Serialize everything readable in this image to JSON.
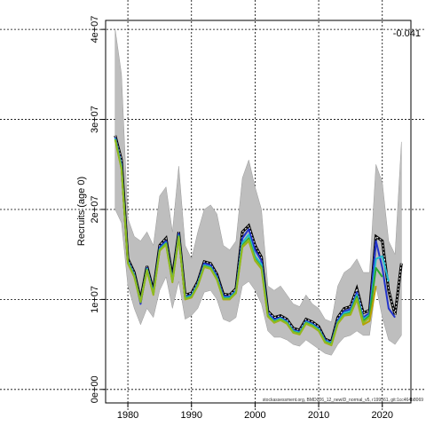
{
  "chart_data": {
    "type": "line",
    "title": "",
    "xlabel": "",
    "ylabel": "Recruits (age 0)",
    "xlim": [
      1976.5,
      2024.5
    ],
    "ylim": [
      -1500000,
      41000000
    ],
    "x_ticks": [
      1980,
      1990,
      2000,
      2010,
      2020
    ],
    "x_tick_labels": [
      "1980",
      "1990",
      "2000",
      "2010",
      "2020"
    ],
    "y_ticks": [
      0,
      10000000,
      20000000,
      30000000,
      40000000
    ],
    "y_tick_labels": [
      "0e+00",
      "1e+07",
      "2e+07",
      "3e+07",
      "4e+07"
    ],
    "grid": true,
    "corner_label": "-0.041",
    "footnote": "stockassessment.org, BMD026_12_newID_normal_v5, r199561, git:1cc464b8069",
    "band": {
      "x": [
        1978,
        1979,
        1980,
        1981,
        1982,
        1983,
        1984,
        1985,
        1986,
        1987,
        1988,
        1989,
        1990,
        1991,
        1992,
        1993,
        1994,
        1995,
        1996,
        1997,
        1998,
        1999,
        2000,
        2001,
        2002,
        2003,
        2004,
        2005,
        2006,
        2007,
        2008,
        2009,
        2010,
        2011,
        2012,
        2013,
        2014,
        2015,
        2016,
        2017,
        2018,
        2019,
        2020,
        2021,
        2022,
        2023
      ],
      "lower": [
        20000000,
        18500000,
        11500000,
        9000000,
        7200000,
        9000000,
        8000000,
        11000000,
        12500000,
        9000000,
        12000000,
        7800000,
        8200000,
        9000000,
        10800000,
        11000000,
        10000000,
        7800000,
        7500000,
        8000000,
        11500000,
        12000000,
        11000000,
        9500000,
        6500000,
        5800000,
        5800000,
        5500000,
        5000000,
        4800000,
        5500000,
        5000000,
        4500000,
        4000000,
        3800000,
        5000000,
        5800000,
        6000000,
        6500000,
        6000000,
        6000000,
        11500000,
        8000000,
        5500000,
        5000000,
        6000000
      ],
      "upper": [
        40000000,
        35000000,
        19000000,
        17000000,
        16500000,
        17500000,
        16000000,
        21500000,
        22500000,
        17500000,
        24800000,
        16000000,
        14500000,
        17500000,
        20000000,
        20500000,
        19500000,
        16000000,
        15500000,
        16500000,
        23500000,
        25500000,
        22500000,
        20000000,
        11500000,
        11000000,
        11500000,
        10500000,
        9500000,
        9200000,
        10500000,
        9500000,
        9000000,
        7800000,
        7500000,
        11500000,
        13000000,
        13500000,
        14500000,
        13000000,
        13000000,
        25000000,
        23000000,
        16500000,
        15000000,
        27500000
      ]
    },
    "series": [
      {
        "color": "#000000",
        "dashed": true,
        "x": [
          1978,
          1979,
          1980,
          1981,
          1982,
          1983,
          1984,
          1985,
          1986,
          1987,
          1988,
          1989,
          1990,
          1991,
          1992,
          1993,
          1994,
          1995,
          1996,
          1997,
          1998,
          1999,
          2000,
          2001,
          2002,
          2003,
          2004,
          2005,
          2006,
          2007,
          2008,
          2009,
          2010,
          2011,
          2012,
          2013,
          2014,
          2015,
          2016,
          2017,
          2018,
          2019,
          2020,
          2021,
          2022,
          2023
        ],
        "values": [
          28200000,
          25500000,
          14500000,
          13000000,
          10000000,
          13700000,
          11000000,
          16000000,
          16800000,
          12500000,
          17500000,
          10500000,
          10700000,
          12000000,
          14200000,
          14000000,
          12800000,
          10600000,
          10500000,
          11200000,
          17500000,
          18200000,
          16000000,
          14700000,
          8700000,
          8000000,
          8200000,
          7800000,
          6800000,
          6600000,
          7800000,
          7500000,
          7000000,
          5600000,
          5300000,
          8000000,
          9000000,
          9200000,
          11200000,
          8500000,
          8800000,
          17000000,
          16500000,
          11000000,
          8300000,
          14000000
        ]
      },
      {
        "color": "#2233cc",
        "dashed": false,
        "x": [
          1978,
          1979,
          1980,
          1981,
          1982,
          1983,
          1984,
          1985,
          1986,
          1987,
          1988,
          1989,
          1990,
          1991,
          1992,
          1993,
          1994,
          1995,
          1996,
          1997,
          1998,
          1999,
          2000,
          2001,
          2002,
          2003,
          2004,
          2005,
          2006,
          2007,
          2008,
          2009,
          2010,
          2011,
          2012,
          2013,
          2014,
          2015,
          2016,
          2017,
          2018,
          2019,
          2020,
          2021,
          2022
        ],
        "values": [
          28000000,
          25000000,
          14300000,
          12800000,
          9500000,
          13500000,
          10800000,
          15800000,
          16500000,
          12200000,
          17300000,
          10300000,
          10500000,
          11800000,
          14000000,
          13800000,
          12600000,
          10400000,
          10300000,
          11000000,
          16800000,
          17800000,
          15500000,
          14300000,
          8500000,
          7800000,
          8000000,
          7600000,
          6600000,
          6400000,
          7600000,
          7300000,
          6800000,
          5500000,
          5200000,
          7700000,
          8700000,
          8900000,
          10800000,
          8000000,
          8500000,
          16500000,
          13500000,
          9000000,
          8000000
        ]
      },
      {
        "color": "#22bbcc",
        "dashed": false,
        "x": [
          1978,
          1979,
          1980,
          1981,
          1982,
          1983,
          1984,
          1985,
          1986,
          1987,
          1988,
          1989,
          1990,
          1991,
          1992,
          1993,
          1994,
          1995,
          1996,
          1997,
          1998,
          1999,
          2000,
          2001,
          2002,
          2003,
          2004,
          2005,
          2006,
          2007,
          2008,
          2009,
          2010,
          2011,
          2012,
          2013,
          2014,
          2015,
          2016,
          2017,
          2018,
          2019,
          2020,
          2021
        ],
        "values": [
          27900000,
          24800000,
          14200000,
          12700000,
          9800000,
          13400000,
          10700000,
          15600000,
          16300000,
          12100000,
          17100000,
          10200000,
          10400000,
          11700000,
          13800000,
          13600000,
          12400000,
          10200000,
          10200000,
          10900000,
          16300000,
          17200000,
          14800000,
          13900000,
          8300000,
          7600000,
          7900000,
          7500000,
          6500000,
          6300000,
          7500000,
          7200000,
          6700000,
          5400000,
          5100000,
          7500000,
          8500000,
          8700000,
          10500000,
          7800000,
          8300000,
          14500000,
          14800000,
          12000000
        ]
      },
      {
        "color": "#2ea830",
        "dashed": false,
        "x": [
          1978,
          1979,
          1980,
          1981,
          1982,
          1983,
          1984,
          1985,
          1986,
          1987,
          1988,
          1989,
          1990,
          1991,
          1992,
          1993,
          1994,
          1995,
          1996,
          1997,
          1998,
          1999,
          2000,
          2001,
          2002,
          2003,
          2004,
          2005,
          2006,
          2007,
          2008,
          2009,
          2010,
          2011,
          2012,
          2013,
          2014,
          2015,
          2016,
          2017,
          2018,
          2019,
          2020
        ],
        "values": [
          27800000,
          24600000,
          14100000,
          12600000,
          9700000,
          13300000,
          10600000,
          15500000,
          16200000,
          12000000,
          17000000,
          10100000,
          10300000,
          11600000,
          13700000,
          13500000,
          12300000,
          10100000,
          10100000,
          10800000,
          16000000,
          16800000,
          14500000,
          13600000,
          8200000,
          7500000,
          7800000,
          7400000,
          6400000,
          6200000,
          7400000,
          7100000,
          6600000,
          5300000,
          5000000,
          7400000,
          8300000,
          8500000,
          10300000,
          7600000,
          8200000,
          13500000,
          12500000
        ]
      },
      {
        "color": "#b8a000",
        "dashed": false,
        "x": [
          1978,
          1979,
          1980,
          1981,
          1982,
          1983,
          1984,
          1985,
          1986,
          1987,
          1988,
          1989,
          1990,
          1991,
          1992,
          1993,
          1994,
          1995,
          1996,
          1997,
          1998,
          1999,
          2000,
          2001,
          2002,
          2003,
          2004,
          2005,
          2006,
          2007,
          2008,
          2009,
          2010,
          2011,
          2012,
          2013,
          2014,
          2015,
          2016,
          2017,
          2018,
          2019
        ],
        "values": [
          27700000,
          24500000,
          14000000,
          12500000,
          9700000,
          13200000,
          10500000,
          15400000,
          16100000,
          11900000,
          16900000,
          10000000,
          10200000,
          11500000,
          13600000,
          13400000,
          12200000,
          10000000,
          10000000,
          10700000,
          15800000,
          16500000,
          14300000,
          13400000,
          8100000,
          7400000,
          7700000,
          7300000,
          6300000,
          6100000,
          7300000,
          7000000,
          6500000,
          5200000,
          4900000,
          7300000,
          8200000,
          8300000,
          10000000,
          7200000,
          7600000,
          11500000
        ]
      },
      {
        "color": "#8cbb22",
        "dashed": false,
        "x": [
          1978,
          1979,
          1980,
          1981,
          1982,
          1983,
          1984,
          1985,
          1986,
          1987,
          1988,
          1989,
          1990,
          1991,
          1992,
          1993,
          1994,
          1995,
          1996,
          1997,
          1998,
          1999,
          2000,
          2001,
          2002,
          2003,
          2004,
          2005,
          2006,
          2007,
          2008,
          2009,
          2010,
          2011,
          2012,
          2013,
          2014,
          2015,
          2016,
          2017,
          2018
        ],
        "values": [
          27750000,
          24550000,
          14050000,
          12550000,
          9700000,
          13250000,
          10550000,
          15450000,
          16150000,
          11950000,
          16950000,
          10050000,
          10250000,
          11550000,
          13650000,
          13450000,
          12250000,
          10050000,
          10050000,
          10750000,
          15900000,
          16600000,
          14400000,
          13500000,
          8150000,
          7450000,
          7750000,
          7350000,
          6350000,
          6150000,
          7350000,
          7050000,
          6550000,
          5250000,
          4950000,
          7350000,
          8250000,
          8400000,
          10100000,
          7400000,
          8000000
        ]
      }
    ]
  }
}
